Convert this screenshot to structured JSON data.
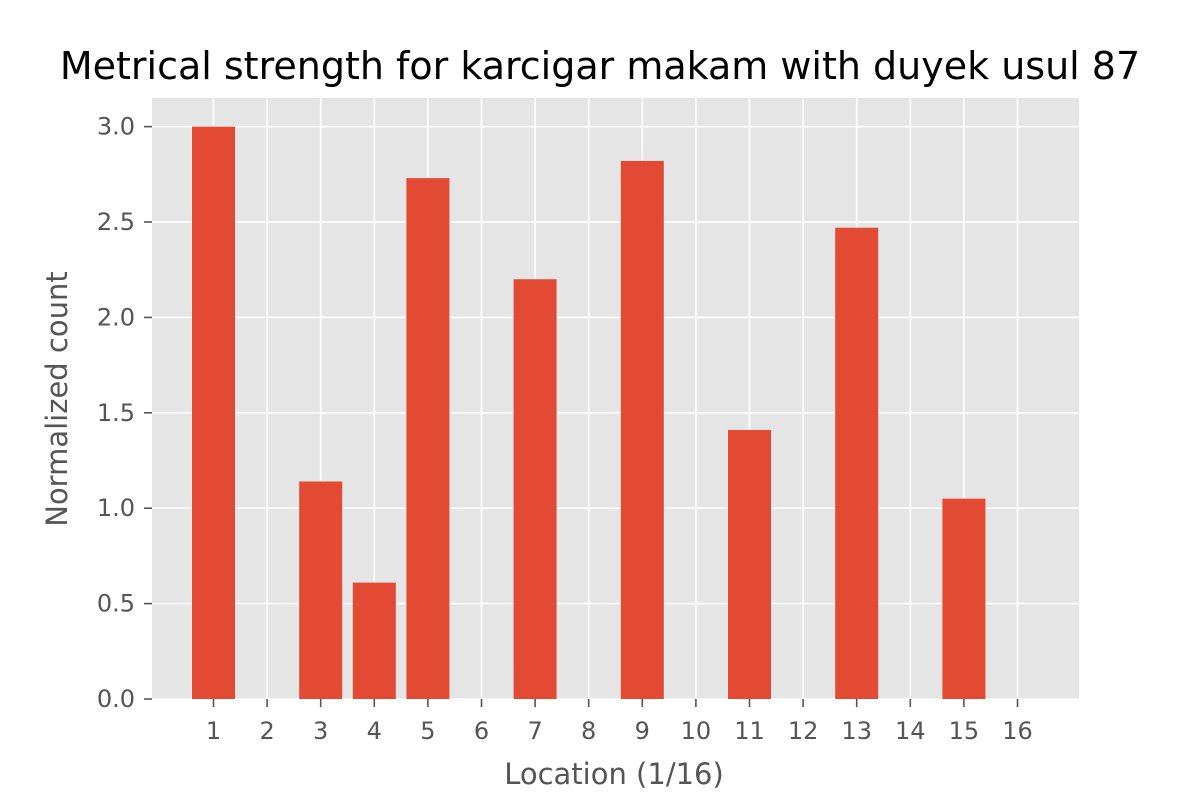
{
  "chart_data": {
    "type": "bar",
    "title": "Metrical strength for karcigar makam with duyek usul 87",
    "xlabel": "Location (1/16)",
    "ylabel": "Normalized count",
    "categories": [
      "1",
      "2",
      "3",
      "4",
      "5",
      "6",
      "7",
      "8",
      "9",
      "10",
      "11",
      "12",
      "13",
      "14",
      "15",
      "16"
    ],
    "values": [
      3.0,
      0,
      1.14,
      0.61,
      2.73,
      0,
      2.2,
      0,
      2.82,
      0,
      1.41,
      0,
      2.47,
      0,
      1.05,
      0
    ],
    "ylim": [
      0,
      3.15
    ],
    "yticks": [
      "0.0",
      "0.5",
      "1.0",
      "1.5",
      "2.0",
      "2.5",
      "3.0"
    ],
    "grid": true,
    "colors": {
      "bar": "#E24A33",
      "background": "#E5E5E5",
      "grid": "#FFFFFF"
    }
  }
}
